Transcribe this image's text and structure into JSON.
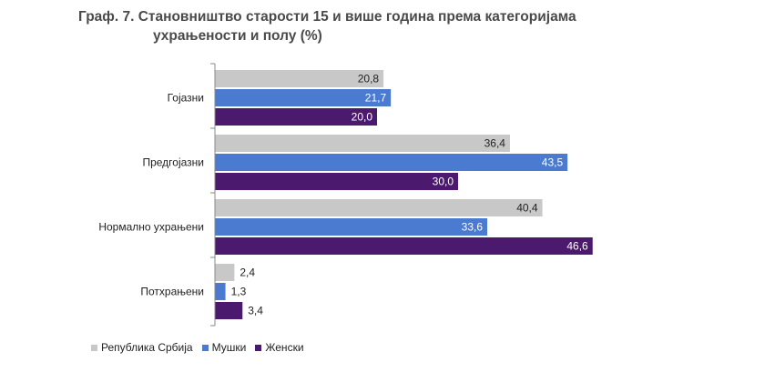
{
  "chart_data": {
    "type": "bar",
    "orientation": "horizontal",
    "title_line1": "Граф. 7.  Становништво старости 15 и више година према категоријама",
    "title_line2": "ухрањености и полу (%)",
    "categories": [
      "Гојазни",
      "Предгојазни",
      "Нормално ухрањени",
      "Потхрањени"
    ],
    "series": [
      {
        "name": "Република Србија",
        "color": "#c8c8c8",
        "label_color": "#222222",
        "values": [
          20.8,
          36.4,
          40.4,
          2.4
        ],
        "labels": [
          "20,8",
          "36,4",
          "40,4",
          "2,4"
        ]
      },
      {
        "name": "Мушки",
        "color": "#4a7bd0",
        "label_color": "#ffffff",
        "values": [
          21.7,
          43.5,
          33.6,
          1.3
        ],
        "labels": [
          "21,7",
          "43,5",
          "33,6",
          "1,3"
        ]
      },
      {
        "name": "Женски",
        "color": "#4b1a6e",
        "label_color": "#ffffff",
        "values": [
          20.0,
          30.0,
          46.6,
          3.4
        ],
        "labels": [
          "20,0",
          "30,0",
          "46,6",
          "3,4"
        ]
      }
    ],
    "xlim": [
      0,
      50
    ],
    "grid": false,
    "legend": "bottom-left"
  }
}
